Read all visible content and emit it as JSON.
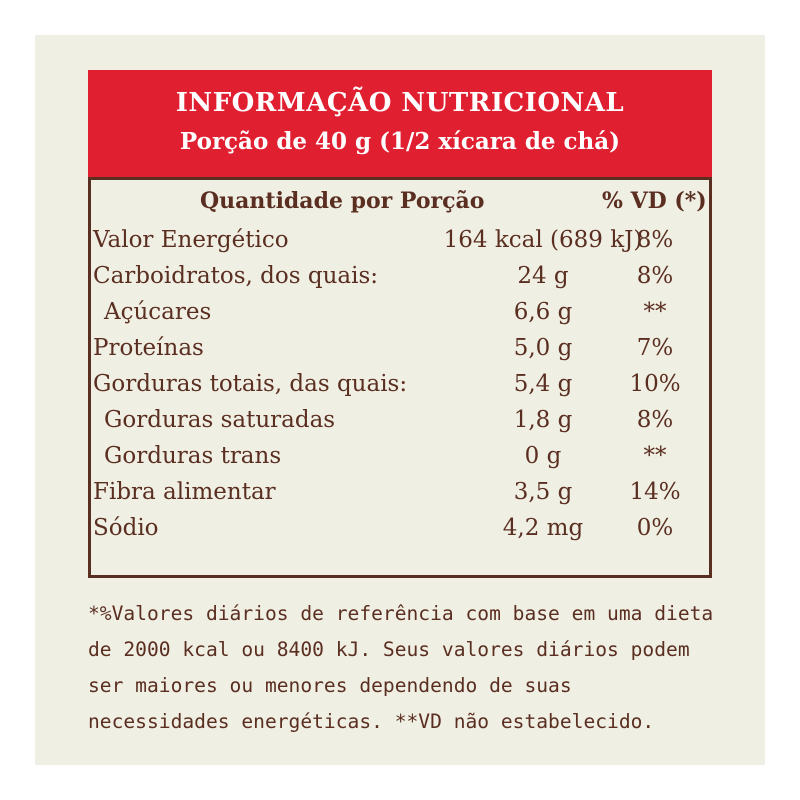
{
  "header": {
    "title": "INFORMAÇÃO NUTRICIONAL",
    "subtitle": "Porção de 40 g (1/2 xícara de chá)"
  },
  "columns": {
    "quantity": "Quantidade por Porção",
    "dv": "% VD (*)"
  },
  "rows": [
    {
      "name": "Valor Energético",
      "amount": "164 kcal (689 kJ)",
      "dv": "8%"
    },
    {
      "name": "Carboidratos, dos quais:",
      "amount": "24 g",
      "dv": "8%"
    },
    {
      "name": "Açúcares",
      "amount": "6,6 g",
      "dv": "**"
    },
    {
      "name": "Proteínas",
      "amount": "5,0 g",
      "dv": "7%"
    },
    {
      "name": "Gorduras totais, das quais:",
      "amount": "5,4 g",
      "dv": "10%"
    },
    {
      "name": "Gorduras saturadas",
      "amount": "1,8 g",
      "dv": "8%"
    },
    {
      "name": "Gorduras trans",
      "amount": "0 g",
      "dv": "**"
    },
    {
      "name": "Fibra alimentar",
      "amount": "3,5 g",
      "dv": "14%"
    },
    {
      "name": "Sódio",
      "amount": "4,2 mg",
      "dv": "0%"
    }
  ],
  "footnote": "*%Valores diários de referência com base em uma dieta de 2000 kcal ou 8400 kJ. Seus valores diários podem ser maiores ou menores dependendo de suas necessidades energéticas. **VD não estabelecido.",
  "colors": {
    "header_red": "#e01f30",
    "text_brown": "#5a2e21",
    "background": "#f0efe3"
  }
}
